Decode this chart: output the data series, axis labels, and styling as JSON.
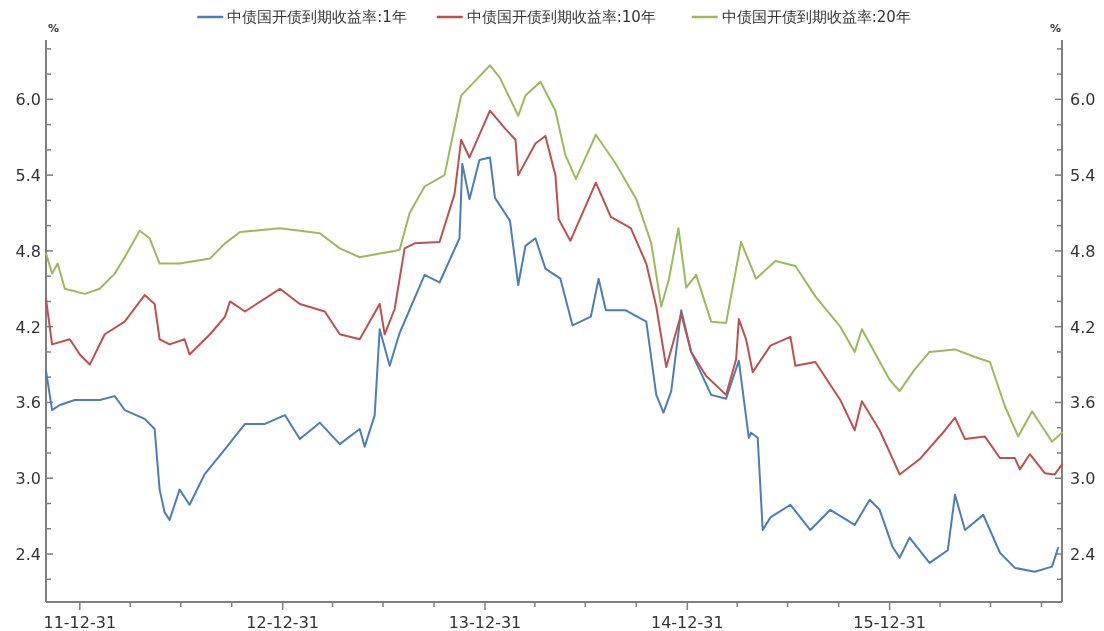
{
  "chart_data": {
    "type": "line",
    "ylabel": "%",
    "y2label": "%",
    "legend": "top",
    "xlim": [
      "2011-10-31",
      "2016-11-06"
    ],
    "xticks": [
      {
        "value": "2011-12-31",
        "label": "11-12-31"
      },
      {
        "value": "2012-03-31",
        "label": null
      },
      {
        "value": "2012-06-30",
        "label": null
      },
      {
        "value": "2012-09-30",
        "label": null
      },
      {
        "value": "2012-12-31",
        "label": "12-12-31"
      },
      {
        "value": "2013-03-31",
        "label": null
      },
      {
        "value": "2013-06-30",
        "label": null
      },
      {
        "value": "2013-09-30",
        "label": null
      },
      {
        "value": "2013-12-31",
        "label": "13-12-31"
      },
      {
        "value": "2014-03-31",
        "label": null
      },
      {
        "value": "2014-06-30",
        "label": null
      },
      {
        "value": "2014-09-30",
        "label": null
      },
      {
        "value": "2014-12-31",
        "label": "14-12-31"
      },
      {
        "value": "2015-03-31",
        "label": null
      },
      {
        "value": "2015-06-30",
        "label": null
      },
      {
        "value": "2015-09-30",
        "label": null
      },
      {
        "value": "2015-12-31",
        "label": "15-12-31"
      },
      {
        "value": "2016-03-31",
        "label": null
      },
      {
        "value": "2016-06-30",
        "label": null
      },
      {
        "value": "2016-09-30",
        "label": null
      }
    ],
    "ylim": [
      2.02,
      6.47
    ],
    "yticks": [
      {
        "value": 2.2,
        "label": null
      },
      {
        "value": 2.4,
        "label": "2.4"
      },
      {
        "value": 2.6,
        "label": null
      },
      {
        "value": 2.8,
        "label": null
      },
      {
        "value": 3.0,
        "label": "3.0"
      },
      {
        "value": 3.2,
        "label": null
      },
      {
        "value": 3.4,
        "label": null
      },
      {
        "value": 3.6,
        "label": "3.6"
      },
      {
        "value": 3.8,
        "label": null
      },
      {
        "value": 4.0,
        "label": null
      },
      {
        "value": 4.2,
        "label": "4.2"
      },
      {
        "value": 4.4,
        "label": null
      },
      {
        "value": 4.6,
        "label": null
      },
      {
        "value": 4.8,
        "label": "4.8"
      },
      {
        "value": 5.0,
        "label": null
      },
      {
        "value": 5.2,
        "label": null
      },
      {
        "value": 5.4,
        "label": "5.4"
      },
      {
        "value": 5.6,
        "label": null
      },
      {
        "value": 5.8,
        "label": null
      },
      {
        "value": 6.0,
        "label": "6.0"
      },
      {
        "value": 6.2,
        "label": null
      },
      {
        "value": 6.4,
        "label": null
      }
    ],
    "y2lim": [
      2.02,
      6.47
    ],
    "y2ticks": [
      {
        "value": 2.2,
        "label": null
      },
      {
        "value": 2.4,
        "label": "2.4"
      },
      {
        "value": 2.6,
        "label": null
      },
      {
        "value": 2.8,
        "label": null
      },
      {
        "value": 3.0,
        "label": "3.0"
      },
      {
        "value": 3.2,
        "label": null
      },
      {
        "value": 3.4,
        "label": null
      },
      {
        "value": 3.6,
        "label": "3.6"
      },
      {
        "value": 3.8,
        "label": null
      },
      {
        "value": 4.0,
        "label": null
      },
      {
        "value": 4.2,
        "label": "4.2"
      },
      {
        "value": 4.4,
        "label": null
      },
      {
        "value": 4.6,
        "label": null
      },
      {
        "value": 4.8,
        "label": "4.8"
      },
      {
        "value": 5.0,
        "label": null
      },
      {
        "value": 5.2,
        "label": null
      },
      {
        "value": 5.4,
        "label": "5.4"
      },
      {
        "value": 5.6,
        "label": null
      },
      {
        "value": 5.8,
        "label": null
      },
      {
        "value": 6.0,
        "label": "6.0"
      },
      {
        "value": 6.2,
        "label": null
      },
      {
        "value": 6.4,
        "label": null
      }
    ],
    "series": [
      {
        "name": "中债国开债到期收益率:1年",
        "color": "#4a7ebb",
        "x": [
          "2011-10-31",
          "2011-11-11",
          "2011-11-25",
          "2011-12-22",
          "2012-02-05",
          "2012-03-03",
          "2012-03-21",
          "2012-04-26",
          "2012-05-14",
          "2012-05-23",
          "2012-06-01",
          "2012-06-10",
          "2012-06-28",
          "2012-07-16",
          "2012-08-12",
          "2012-09-18",
          "2012-10-24",
          "2012-11-29",
          "2013-01-04",
          "2013-01-31",
          "2013-03-08",
          "2013-04-13",
          "2013-05-19",
          "2013-05-28",
          "2013-06-15",
          "2013-06-24",
          "2013-07-12",
          "2013-07-30",
          "2013-09-13",
          "2013-10-10",
          "2013-11-15",
          "2013-11-20",
          "2013-12-03",
          "2013-12-21",
          "2014-01-09",
          "2014-01-18",
          "2014-02-14",
          "2014-03-01",
          "2014-03-14",
          "2014-04-01",
          "2014-04-19",
          "2014-05-16",
          "2014-06-07",
          "2014-07-10",
          "2014-07-24",
          "2014-08-06",
          "2014-09-11",
          "2014-10-18",
          "2014-11-05",
          "2014-11-18",
          "2014-12-02",
          "2014-12-20",
          "2015-01-07",
          "2015-02-12",
          "2015-03-11",
          "2015-04-03",
          "2015-04-21",
          "2015-04-25",
          "2015-05-07",
          "2015-05-16",
          "2015-05-30",
          "2015-07-05",
          "2015-08-10",
          "2015-09-15",
          "2015-10-29",
          "2015-11-25",
          "2015-12-13",
          "2016-01-05",
          "2016-01-18",
          "2016-02-05",
          "2016-03-12",
          "2016-04-14",
          "2016-04-27",
          "2016-05-15",
          "2016-06-17",
          "2016-07-17",
          "2016-08-13",
          "2016-09-18",
          "2016-10-19",
          "2016-10-30"
        ],
        "values": [
          3.85,
          3.54,
          3.58,
          3.62,
          3.62,
          3.65,
          3.54,
          3.47,
          3.39,
          2.91,
          2.73,
          2.67,
          2.91,
          2.79,
          3.03,
          3.23,
          3.43,
          3.43,
          3.5,
          3.31,
          3.44,
          3.27,
          3.39,
          3.25,
          3.5,
          4.18,
          3.89,
          4.15,
          4.61,
          4.55,
          4.9,
          5.49,
          5.21,
          5.52,
          5.54,
          5.22,
          5.04,
          4.53,
          4.84,
          4.9,
          4.66,
          4.58,
          4.21,
          4.28,
          4.58,
          4.33,
          4.33,
          4.24,
          3.66,
          3.52,
          3.69,
          4.33,
          4.0,
          3.66,
          3.63,
          3.93,
          3.32,
          3.36,
          3.32,
          2.59,
          2.69,
          2.79,
          2.59,
          2.75,
          2.63,
          2.83,
          2.75,
          2.46,
          2.37,
          2.53,
          2.33,
          2.43,
          2.87,
          2.59,
          2.71,
          2.41,
          2.29,
          2.26,
          2.3,
          2.45
        ]
      },
      {
        "name": "中债国开债到期收益率:10年",
        "color": "#c0504d",
        "x": [
          "2011-10-31",
          "2011-11-11",
          "2011-12-13",
          "2011-12-31",
          "2012-01-18",
          "2012-02-14",
          "2012-03-21",
          "2012-04-26",
          "2012-05-14",
          "2012-05-23",
          "2012-06-10",
          "2012-07-07",
          "2012-07-16",
          "2012-08-22",
          "2012-09-18",
          "2012-09-27",
          "2012-10-24",
          "2012-12-26",
          "2013-01-31",
          "2013-03-17",
          "2013-04-13",
          "2013-05-19",
          "2013-06-24",
          "2013-07-03",
          "2013-07-21",
          "2013-08-08",
          "2013-08-26",
          "2013-10-10",
          "2013-11-06",
          "2013-11-18",
          "2013-12-03",
          "2014-01-09",
          "2014-02-05",
          "2014-02-24",
          "2014-03-01",
          "2014-04-01",
          "2014-04-19",
          "2014-05-07",
          "2014-05-13",
          "2014-06-03",
          "2014-07-19",
          "2014-08-15",
          "2014-09-20",
          "2014-10-18",
          "2014-11-05",
          "2014-11-23",
          "2014-12-20",
          "2015-01-07",
          "2015-02-03",
          "2015-03-11",
          "2015-03-29",
          "2015-04-03",
          "2015-04-16",
          "2015-04-28",
          "2015-05-30",
          "2015-07-05",
          "2015-07-14",
          "2015-08-19",
          "2015-10-03",
          "2015-10-29",
          "2015-11-11",
          "2015-12-13",
          "2016-01-09",
          "2016-01-18",
          "2016-02-23",
          "2016-04-09",
          "2016-04-27",
          "2016-05-15",
          "2016-06-20",
          "2016-07-17",
          "2016-08-13",
          "2016-08-22",
          "2016-09-09",
          "2016-10-06",
          "2016-10-24",
          "2016-11-06"
        ],
        "values": [
          4.42,
          4.06,
          4.1,
          3.98,
          3.9,
          4.14,
          4.24,
          4.45,
          4.38,
          4.1,
          4.06,
          4.1,
          3.98,
          4.14,
          4.28,
          4.4,
          4.32,
          4.5,
          4.38,
          4.32,
          4.14,
          4.1,
          4.38,
          4.14,
          4.34,
          4.82,
          4.86,
          4.87,
          5.25,
          5.68,
          5.54,
          5.91,
          5.77,
          5.68,
          5.4,
          5.65,
          5.71,
          5.4,
          5.05,
          4.88,
          5.34,
          5.07,
          4.98,
          4.7,
          4.36,
          3.88,
          4.3,
          4.0,
          3.81,
          3.66,
          3.94,
          4.26,
          4.1,
          3.84,
          4.05,
          4.12,
          3.89,
          3.92,
          3.62,
          3.38,
          3.61,
          3.38,
          3.12,
          3.03,
          3.15,
          3.38,
          3.48,
          3.31,
          3.33,
          3.16,
          3.16,
          3.07,
          3.19,
          3.04,
          3.03,
          3.11
        ]
      },
      {
        "name": "中债国开债到期收益率:20年",
        "color": "#9bbb59",
        "x": [
          "2011-10-31",
          "2011-11-11",
          "2011-11-21",
          "2011-12-04",
          "2012-01-09",
          "2012-02-05",
          "2012-03-03",
          "2012-03-21",
          "2012-04-17",
          "2012-05-05",
          "2012-05-23",
          "2012-06-28",
          "2012-08-22",
          "2012-09-18",
          "2012-10-15",
          "2012-12-26",
          "2013-03-08",
          "2013-04-13",
          "2013-05-19",
          "2013-06-24",
          "2013-07-21",
          "2013-07-30",
          "2013-08-17",
          "2013-09-13",
          "2013-10-19",
          "2013-11-18",
          "2013-12-12",
          "2014-01-09",
          "2014-01-27",
          "2014-03-01",
          "2014-03-14",
          "2014-04-10",
          "2014-05-07",
          "2014-05-25",
          "2014-06-13",
          "2014-07-19",
          "2014-08-24",
          "2014-09-30",
          "2014-10-27",
          "2014-11-14",
          "2014-11-28",
          "2014-12-15",
          "2014-12-29",
          "2015-01-16",
          "2015-02-12",
          "2015-03-11",
          "2015-04-07",
          "2015-05-04",
          "2015-06-08",
          "2015-07-14",
          "2015-08-19",
          "2015-10-03",
          "2015-10-29",
          "2015-11-11",
          "2015-12-31",
          "2016-01-18",
          "2016-02-14",
          "2016-03-12",
          "2016-04-27",
          "2016-06-02",
          "2016-06-29",
          "2016-07-26",
          "2016-08-19",
          "2016-09-13",
          "2016-10-19",
          "2016-11-06"
        ],
        "values": [
          4.78,
          4.62,
          4.7,
          4.5,
          4.46,
          4.5,
          4.62,
          4.75,
          4.96,
          4.9,
          4.7,
          4.7,
          4.74,
          4.86,
          4.95,
          4.98,
          4.94,
          4.82,
          4.75,
          4.78,
          4.8,
          4.81,
          5.1,
          5.31,
          5.4,
          6.03,
          6.14,
          6.27,
          6.17,
          5.87,
          6.03,
          6.14,
          5.91,
          5.56,
          5.37,
          5.72,
          5.49,
          5.21,
          4.86,
          4.36,
          4.58,
          4.98,
          4.51,
          4.61,
          4.24,
          4.23,
          4.87,
          4.58,
          4.72,
          4.68,
          4.44,
          4.2,
          4.0,
          4.18,
          3.78,
          3.69,
          3.86,
          4.0,
          4.02,
          3.96,
          3.92,
          3.57,
          3.33,
          3.53,
          3.29,
          3.36
        ]
      }
    ]
  }
}
